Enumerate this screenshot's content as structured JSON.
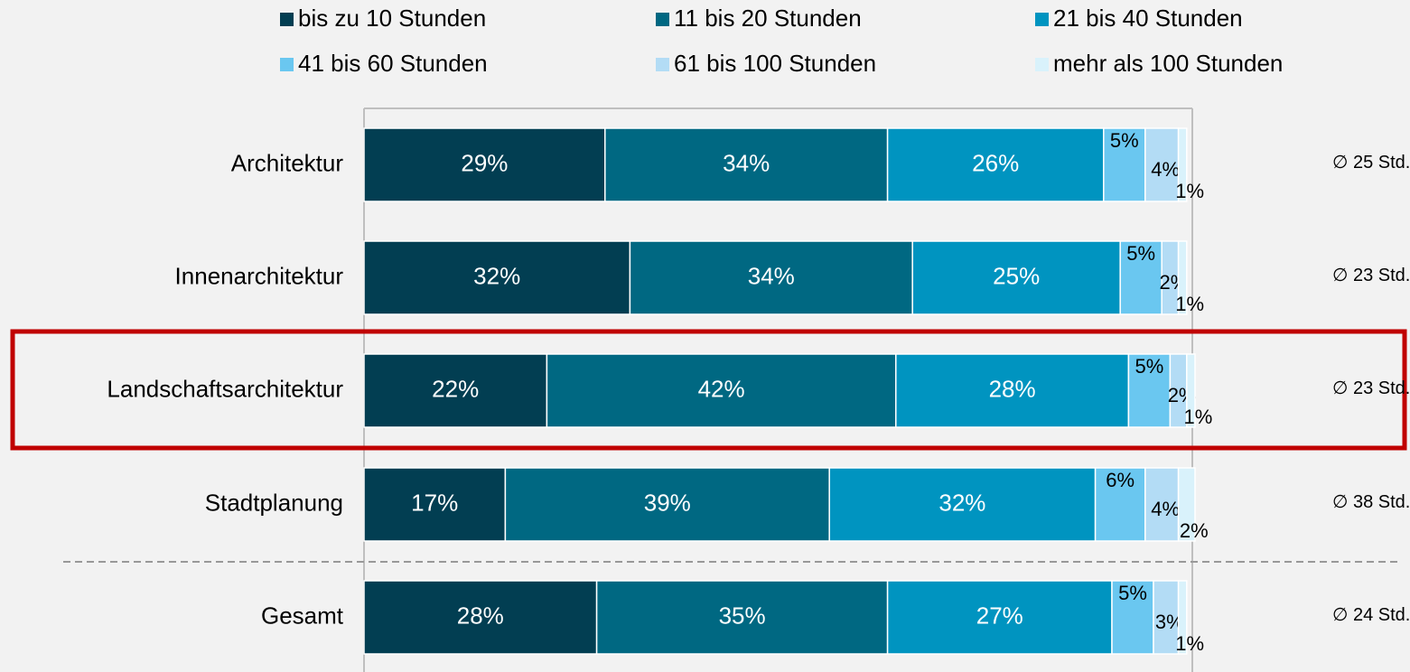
{
  "chart_data": {
    "type": "stacked_bar_horizontal",
    "categories": [
      "Architektur",
      "Innenarchitektur",
      "Landschaftsarchitektur",
      "Stadtplanung",
      "Gesamt"
    ],
    "series": [
      {
        "name": "bis zu 10 Stunden",
        "color": "#023e52",
        "values": [
          29,
          32,
          22,
          17,
          28
        ],
        "value_labels": [
          "29%",
          "32%",
          "22%",
          "17%",
          "28%"
        ]
      },
      {
        "name": "11 bis 20 Stunden",
        "color": "#006882",
        "values": [
          34,
          34,
          42,
          39,
          35
        ],
        "value_labels": [
          "34%",
          "34%",
          "42%",
          "39%",
          "35%"
        ]
      },
      {
        "name": "21 bis 40 Stunden",
        "color": "#0094c0",
        "values": [
          26,
          25,
          28,
          32,
          27
        ],
        "value_labels": [
          "26%",
          "25%",
          "28%",
          "32%",
          "27%"
        ]
      },
      {
        "name": "41 bis 60 Stunden",
        "color": "#6ac7f0",
        "values": [
          5,
          5,
          5,
          6,
          5
        ],
        "value_labels": [
          "5%",
          "5%",
          "5%",
          "6%",
          "5%"
        ]
      },
      {
        "name": "61 bis 100 Stunden",
        "color": "#b3dcf5",
        "values": [
          4,
          2,
          2,
          4,
          3
        ],
        "value_labels": [
          "4%",
          "2%",
          "2%",
          "4%",
          "3%"
        ]
      },
      {
        "name": "mehr als 100 Stunden",
        "color": "#d9f2fb",
        "values": [
          1,
          1,
          1,
          2,
          1
        ],
        "value_labels": [
          "1%",
          "1%",
          "1%",
          "2%",
          "1%"
        ]
      }
    ],
    "annotations": [
      "∅ 25 Std.",
      "∅ 23 Std.",
      "∅ 23 Std.",
      "∅ 38 Std.",
      "∅ 24 Std."
    ],
    "xlim": [
      0,
      100
    ]
  }
}
